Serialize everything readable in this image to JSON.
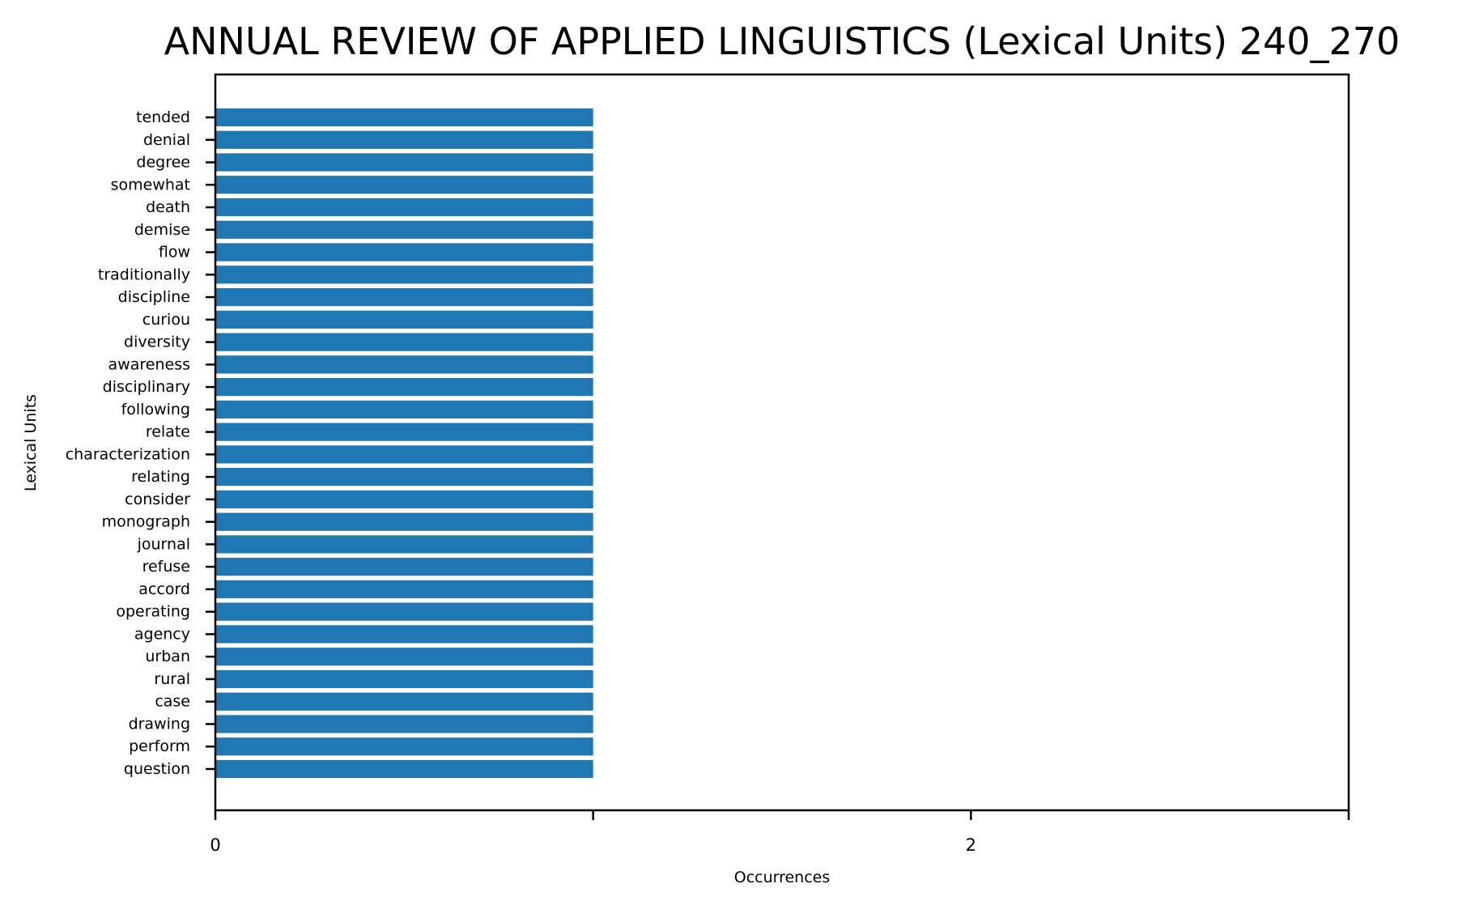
{
  "chart_data": {
    "type": "bar",
    "orientation": "horizontal",
    "title": "ANNUAL REVIEW OF APPLIED LINGUISTICS (Lexical Units) 240_270",
    "xlabel": "Occurrences",
    "ylabel": "Lexical Units",
    "xlim": [
      0,
      3
    ],
    "xticks": [
      0,
      1,
      2,
      3
    ],
    "xtick_labels": [
      "0",
      "",
      "2",
      ""
    ],
    "grid": false,
    "bar_color": "#1f77b4",
    "categories": [
      "tended",
      "denial",
      "degree",
      "somewhat",
      "death",
      "demise",
      "flow",
      "traditionally",
      "discipline",
      "curiou",
      "diversity",
      "awareness",
      "disciplinary",
      "following",
      "relate",
      "characterization",
      "relating",
      "consider",
      "monograph",
      "journal",
      "refuse",
      "accord",
      "operating",
      "agency",
      "urban",
      "rural",
      "case",
      "drawing",
      "perform",
      "question"
    ],
    "values": [
      1,
      1,
      1,
      1,
      1,
      1,
      1,
      1,
      1,
      1,
      1,
      1,
      1,
      1,
      1,
      1,
      1,
      1,
      1,
      1,
      1,
      1,
      1,
      1,
      1,
      1,
      1,
      1,
      1,
      1
    ]
  }
}
